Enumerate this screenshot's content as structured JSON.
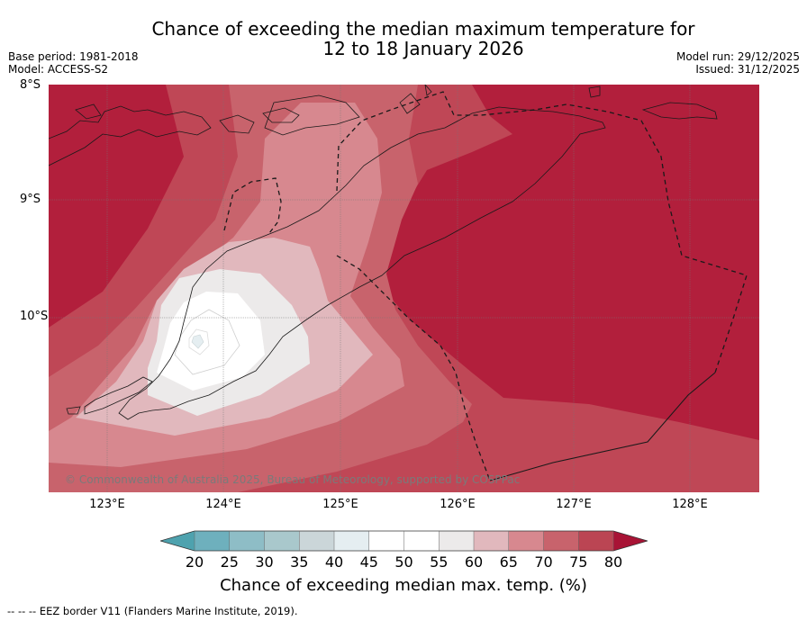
{
  "title": {
    "line1": "Chance of exceeding the median maximum temperature for",
    "line2": "12 to 18 January 2026"
  },
  "info_left": {
    "base_period": "Base period: 1981-2018",
    "model": "Model: ACCESS-S2"
  },
  "info_right": {
    "model_run": "Model run: 29/12/2025",
    "issued": "Issued: 31/12/2025"
  },
  "lat_labels": [
    "8°S",
    "9°S",
    "10°S"
  ],
  "lon_labels": [
    "123°E",
    "124°E",
    "125°E",
    "126°E",
    "127°E",
    "128°E"
  ],
  "copyright": "© Commonwealth of Australia 2025, Bureau of Meteorology, supported by COSPPac",
  "colorbar": {
    "ticks": [
      "20",
      "25",
      "30",
      "35",
      "40",
      "45",
      "50",
      "55",
      "60",
      "65",
      "70",
      "75",
      "80"
    ],
    "colors": [
      "#4ea2ae",
      "#6eb0bd",
      "#8ebdc6",
      "#a9c8cc",
      "#cbd6d9",
      "#e5eef1",
      "#ffffff",
      "#ffffff",
      "#eceaea",
      "#e1b8bd",
      "#d7888f",
      "#c8636c",
      "#bb4553",
      "#a81335"
    ],
    "label": "Chance of exceeding median max. temp. (%)"
  },
  "footnote": "--  --  -- EEZ border V11 (Flanders Marine Institute, 2019)."
}
